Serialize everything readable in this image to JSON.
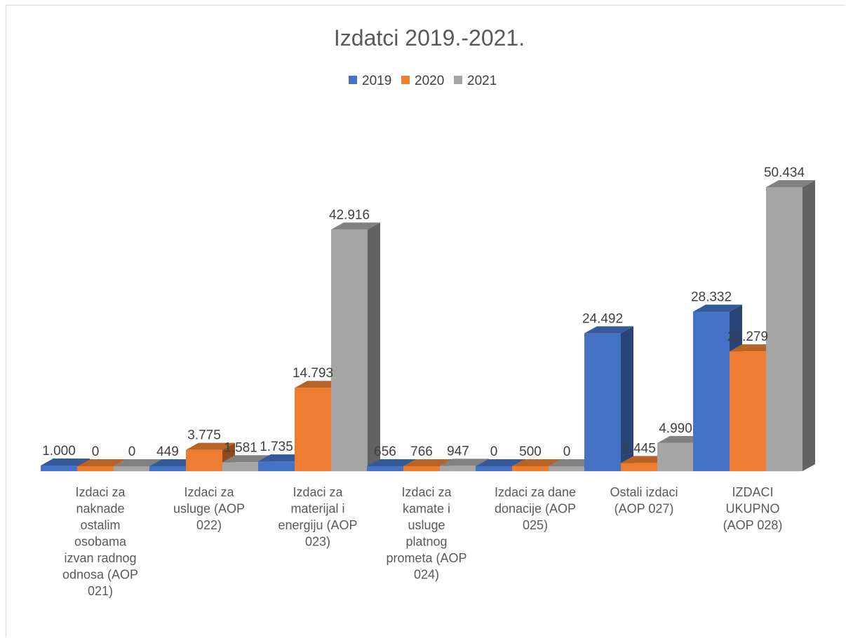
{
  "chart_data": {
    "type": "bar",
    "title": "Izdatci 2019.-2021.",
    "xlabel": "",
    "ylabel": "",
    "ylim": [
      0,
      60000
    ],
    "grid": false,
    "legend_position": "top",
    "categories": [
      [
        "Izdaci za",
        "naknade",
        "ostalim",
        "osobama",
        "izvan radnog",
        "odnosa (AOP",
        "021)"
      ],
      [
        "Izdaci za",
        "usluge (AOP",
        "022)"
      ],
      [
        "Izdaci za",
        "materijal i",
        "energiju (AOP",
        "023)"
      ],
      [
        "Izdaci za",
        "kamate i",
        "usluge",
        "platnog",
        "prometa (AOP",
        "024)"
      ],
      [
        "Izdaci za dane",
        "donacije (AOP",
        "025)"
      ],
      [
        "Ostali izdaci",
        "(AOP 027)"
      ],
      [
        "IZDACI",
        "UKUPNO",
        "(AOP 028)"
      ]
    ],
    "series": [
      {
        "name": "2019",
        "color": "#4472c4",
        "values": [
          1000,
          449,
          1735,
          656,
          0,
          24492,
          28332
        ],
        "labels": [
          "1.000",
          "449",
          "1.735",
          "656",
          "0",
          "24.492",
          "28.332"
        ]
      },
      {
        "name": "2020",
        "color": "#ed7d31",
        "values": [
          0,
          3775,
          14793,
          766,
          500,
          1445,
          21279
        ],
        "labels": [
          "0",
          "3.775",
          "14.793",
          "766",
          "500",
          "1.445",
          "21.279"
        ]
      },
      {
        "name": "2021",
        "color": "#a5a5a5",
        "values": [
          0,
          1581,
          42916,
          947,
          0,
          4990,
          50434
        ],
        "labels": [
          "0",
          "1.581",
          "42.916",
          "947",
          "0",
          "4.990",
          "50.434"
        ]
      }
    ]
  }
}
